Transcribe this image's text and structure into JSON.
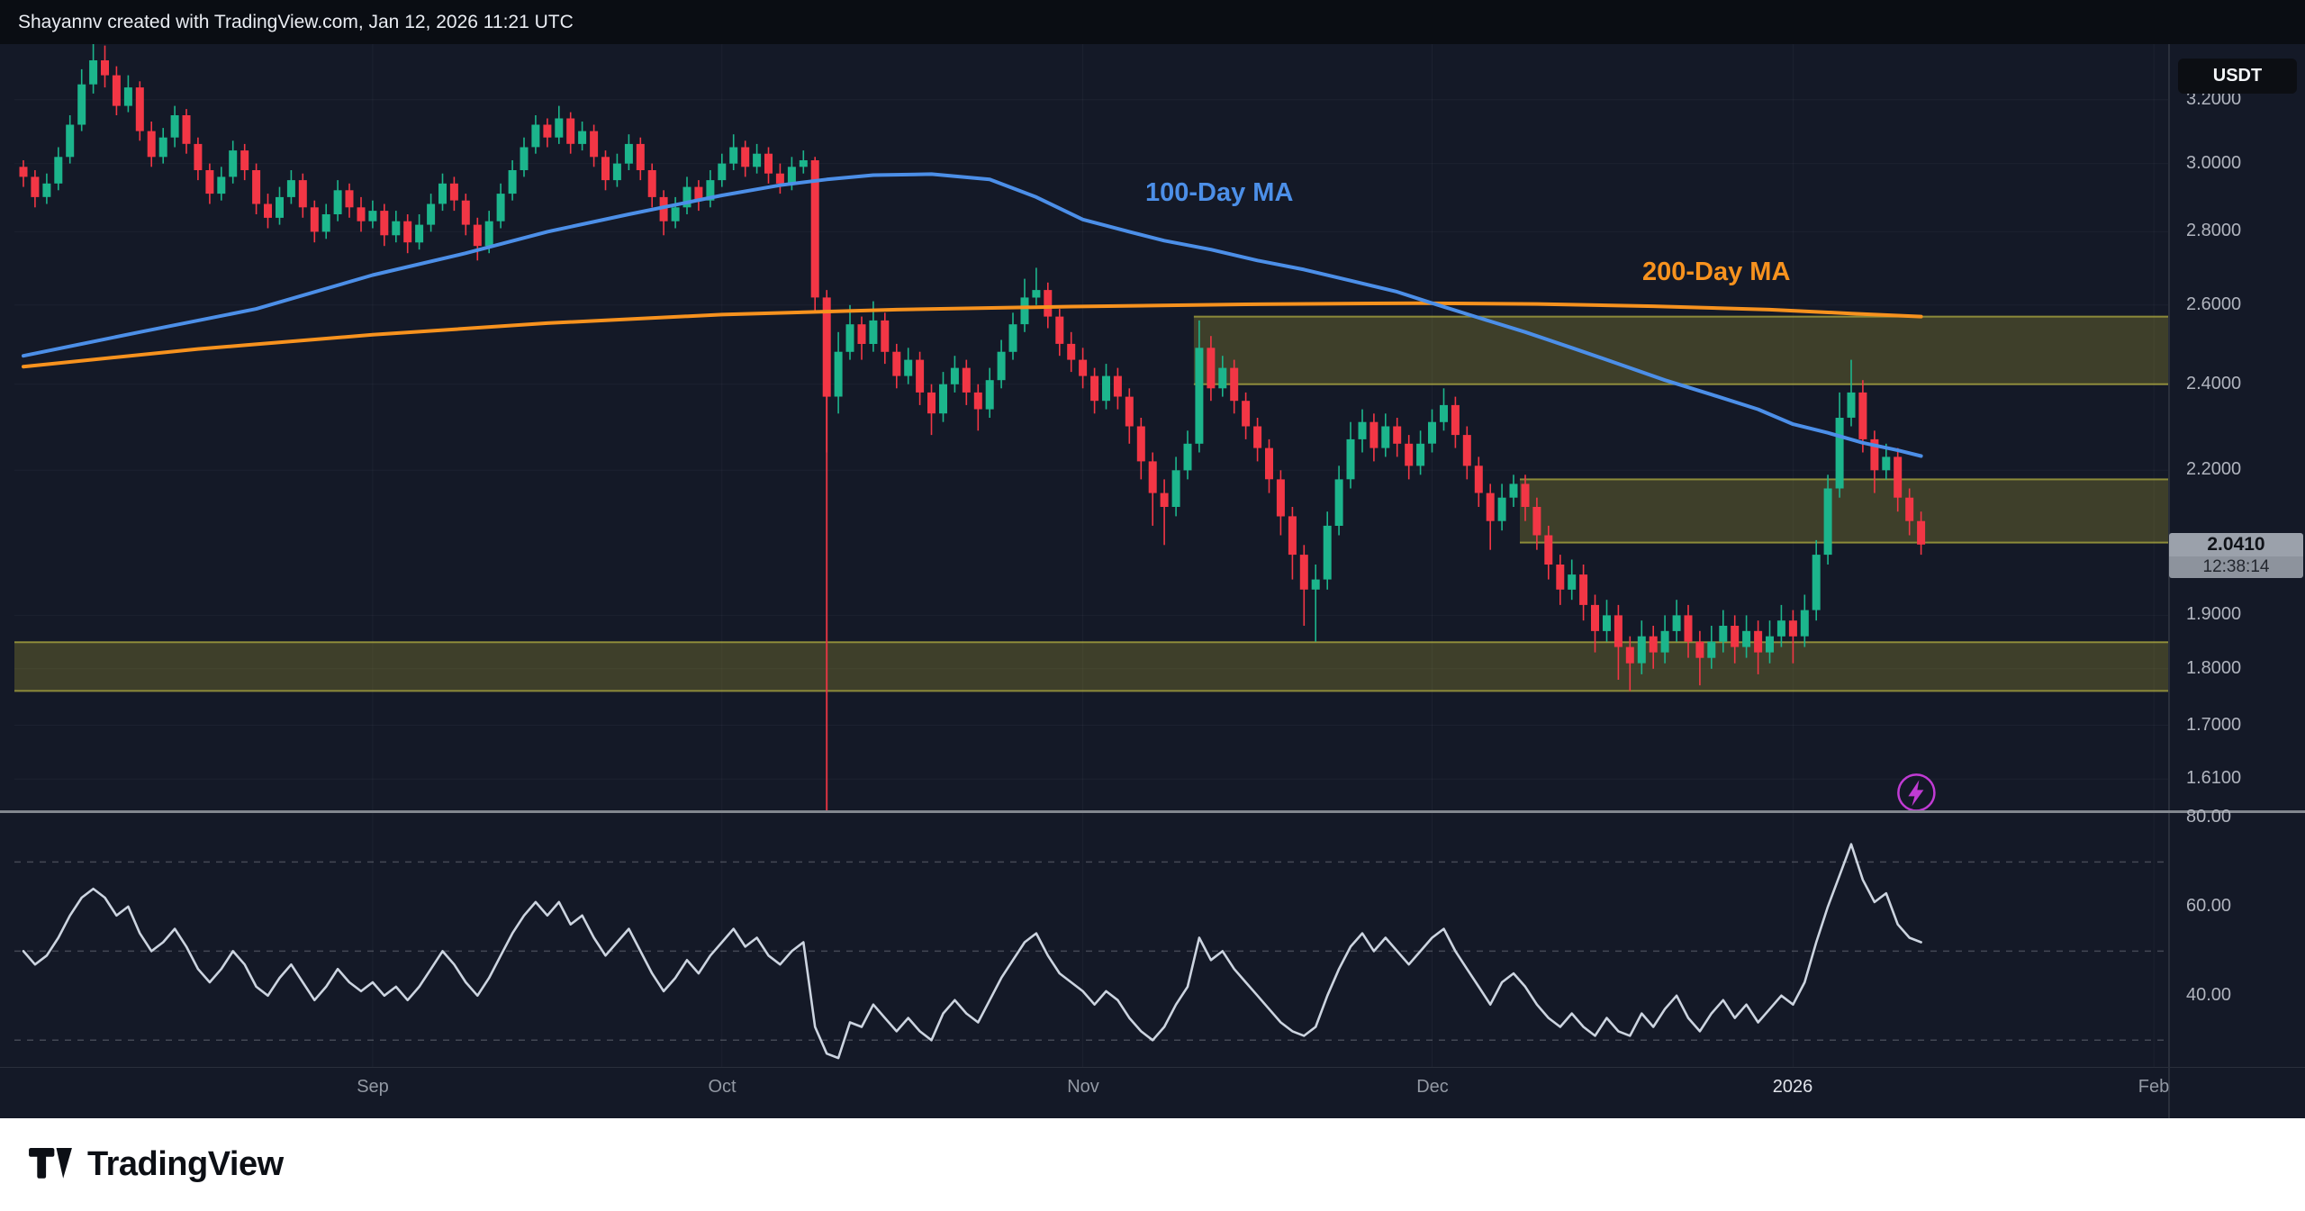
{
  "header": {
    "attribution": "Shayannv created with TradingView.com, Jan 12, 2026 11:21 UTC"
  },
  "symbol": {
    "quote_currency": "USDT"
  },
  "footer": {
    "brand": "TradingView"
  },
  "colors": {
    "background": "#141927",
    "topbar_background": "#0a0d13",
    "up": "#1cb58c",
    "down": "#f23645",
    "ma100": "#4c8fe8",
    "ma200": "#f7921e",
    "zone_fill": "rgba(148,144,48,0.33)",
    "zone_border": "rgba(206,202,70,0.6)",
    "axis_text": "#b0b4be",
    "grid": "rgba(197,203,212,0.05)",
    "separator": "#82878f",
    "axis_border": "#2a2f3b",
    "rsi_line": "#ccd4e0",
    "rsi_guide": "rgba(178,181,190,0.30)",
    "event_line": "#f23645",
    "badge_background": "#9ba1ab",
    "badge_text": "#0f1218",
    "lightning": "#c13bd4",
    "footer_background": "#ffffff",
    "footer_text": "#0c0f15"
  },
  "chart_data": {
    "type": "candlestick",
    "panes": [
      "price",
      "rsi"
    ],
    "x_axis": {
      "labels": [
        {
          "text": "Sep",
          "index": 30
        },
        {
          "text": "Oct",
          "index": 60
        },
        {
          "text": "Nov",
          "index": 91
        },
        {
          "text": "Dec",
          "index": 121
        },
        {
          "text": "2026",
          "index": 152,
          "emphasis": true
        },
        {
          "text": "Feb",
          "index": 183
        }
      ]
    },
    "price_axis": {
      "scale": "log",
      "min": 1.5585,
      "max": 3.385,
      "ticks": [
        {
          "value": 3.2,
          "label": "3.2000"
        },
        {
          "value": 3.0,
          "label": "3.0000"
        },
        {
          "value": 2.8,
          "label": "2.8000"
        },
        {
          "value": 2.6,
          "label": "2.6000"
        },
        {
          "value": 2.4,
          "label": "2.4000"
        },
        {
          "value": 2.2,
          "label": "2.2000"
        },
        {
          "value": 1.9,
          "label": "1.9000"
        },
        {
          "value": 1.8,
          "label": "1.8000"
        },
        {
          "value": 1.7,
          "label": "1.7000"
        },
        {
          "value": 1.61,
          "label": "1.6100"
        }
      ],
      "current_price": 2.041,
      "current_price_label": "2.0410",
      "countdown": "12:38:14"
    },
    "candles": [
      [
        2.99,
        3.01,
        2.93,
        2.96
      ],
      [
        2.96,
        2.98,
        2.87,
        2.9
      ],
      [
        2.9,
        2.97,
        2.88,
        2.94
      ],
      [
        2.94,
        3.05,
        2.92,
        3.02
      ],
      [
        3.02,
        3.15,
        3.0,
        3.12
      ],
      [
        3.12,
        3.3,
        3.1,
        3.25
      ],
      [
        3.25,
        3.39,
        3.22,
        3.33
      ],
      [
        3.33,
        3.38,
        3.24,
        3.28
      ],
      [
        3.28,
        3.31,
        3.15,
        3.18
      ],
      [
        3.18,
        3.28,
        3.16,
        3.24
      ],
      [
        3.24,
        3.26,
        3.07,
        3.1
      ],
      [
        3.1,
        3.13,
        2.99,
        3.02
      ],
      [
        3.02,
        3.11,
        3.0,
        3.08
      ],
      [
        3.08,
        3.18,
        3.05,
        3.15
      ],
      [
        3.15,
        3.17,
        3.03,
        3.06
      ],
      [
        3.06,
        3.08,
        2.95,
        2.98
      ],
      [
        2.98,
        3.0,
        2.88,
        2.91
      ],
      [
        2.91,
        2.99,
        2.89,
        2.96
      ],
      [
        2.96,
        3.07,
        2.94,
        3.04
      ],
      [
        3.04,
        3.06,
        2.95,
        2.98
      ],
      [
        2.98,
        3.0,
        2.85,
        2.88
      ],
      [
        2.88,
        2.91,
        2.81,
        2.84
      ],
      [
        2.84,
        2.93,
        2.82,
        2.9
      ],
      [
        2.9,
        2.98,
        2.88,
        2.95
      ],
      [
        2.95,
        2.97,
        2.84,
        2.87
      ],
      [
        2.87,
        2.89,
        2.77,
        2.8
      ],
      [
        2.8,
        2.88,
        2.78,
        2.85
      ],
      [
        2.85,
        2.95,
        2.83,
        2.92
      ],
      [
        2.92,
        2.94,
        2.84,
        2.87
      ],
      [
        2.87,
        2.9,
        2.8,
        2.83
      ],
      [
        2.83,
        2.89,
        2.81,
        2.86
      ],
      [
        2.86,
        2.88,
        2.76,
        2.79
      ],
      [
        2.79,
        2.86,
        2.77,
        2.83
      ],
      [
        2.83,
        2.85,
        2.74,
        2.77
      ],
      [
        2.77,
        2.85,
        2.75,
        2.82
      ],
      [
        2.82,
        2.91,
        2.8,
        2.88
      ],
      [
        2.88,
        2.97,
        2.86,
        2.94
      ],
      [
        2.94,
        2.96,
        2.86,
        2.89
      ],
      [
        2.89,
        2.91,
        2.79,
        2.82
      ],
      [
        2.82,
        2.84,
        2.72,
        2.76
      ],
      [
        2.76,
        2.86,
        2.74,
        2.83
      ],
      [
        2.83,
        2.94,
        2.81,
        2.91
      ],
      [
        2.91,
        3.01,
        2.89,
        2.98
      ],
      [
        2.98,
        3.08,
        2.96,
        3.05
      ],
      [
        3.05,
        3.15,
        3.03,
        3.12
      ],
      [
        3.12,
        3.14,
        3.05,
        3.08
      ],
      [
        3.08,
        3.18,
        3.06,
        3.14
      ],
      [
        3.14,
        3.16,
        3.03,
        3.06
      ],
      [
        3.06,
        3.13,
        3.04,
        3.1
      ],
      [
        3.1,
        3.12,
        2.99,
        3.02
      ],
      [
        3.02,
        3.04,
        2.92,
        2.95
      ],
      [
        2.95,
        3.03,
        2.93,
        3.0
      ],
      [
        3.0,
        3.09,
        2.98,
        3.06
      ],
      [
        3.06,
        3.08,
        2.95,
        2.98
      ],
      [
        2.98,
        3.0,
        2.87,
        2.9
      ],
      [
        2.9,
        2.92,
        2.79,
        2.83
      ],
      [
        2.83,
        2.9,
        2.81,
        2.87
      ],
      [
        2.87,
        2.96,
        2.85,
        2.93
      ],
      [
        2.93,
        2.95,
        2.86,
        2.89
      ],
      [
        2.89,
        2.98,
        2.87,
        2.95
      ],
      [
        2.95,
        3.03,
        2.93,
        3.0
      ],
      [
        3.0,
        3.09,
        2.98,
        3.05
      ],
      [
        3.05,
        3.07,
        2.96,
        2.99
      ],
      [
        2.99,
        3.06,
        2.97,
        3.03
      ],
      [
        3.03,
        3.05,
        2.94,
        2.97
      ],
      [
        2.97,
        3.0,
        2.91,
        2.94
      ],
      [
        2.94,
        3.02,
        2.92,
        2.99
      ],
      [
        2.99,
        3.04,
        2.97,
        3.01
      ],
      [
        3.01,
        3.02,
        2.58,
        2.62
      ],
      [
        2.62,
        2.64,
        2.24,
        2.37
      ],
      [
        2.37,
        2.53,
        2.33,
        2.48
      ],
      [
        2.48,
        2.6,
        2.46,
        2.55
      ],
      [
        2.55,
        2.57,
        2.46,
        2.5
      ],
      [
        2.5,
        2.61,
        2.48,
        2.56
      ],
      [
        2.56,
        2.58,
        2.45,
        2.48
      ],
      [
        2.48,
        2.5,
        2.39,
        2.42
      ],
      [
        2.42,
        2.49,
        2.4,
        2.46
      ],
      [
        2.46,
        2.48,
        2.35,
        2.38
      ],
      [
        2.38,
        2.4,
        2.28,
        2.33
      ],
      [
        2.33,
        2.43,
        2.31,
        2.4
      ],
      [
        2.4,
        2.47,
        2.38,
        2.44
      ],
      [
        2.44,
        2.46,
        2.35,
        2.38
      ],
      [
        2.38,
        2.4,
        2.29,
        2.34
      ],
      [
        2.34,
        2.44,
        2.32,
        2.41
      ],
      [
        2.41,
        2.51,
        2.39,
        2.48
      ],
      [
        2.48,
        2.58,
        2.46,
        2.55
      ],
      [
        2.55,
        2.67,
        2.53,
        2.62
      ],
      [
        2.62,
        2.7,
        2.6,
        2.64
      ],
      [
        2.64,
        2.66,
        2.54,
        2.57
      ],
      [
        2.57,
        2.59,
        2.47,
        2.5
      ],
      [
        2.5,
        2.53,
        2.43,
        2.46
      ],
      [
        2.46,
        2.49,
        2.39,
        2.42
      ],
      [
        2.42,
        2.44,
        2.33,
        2.36
      ],
      [
        2.36,
        2.45,
        2.34,
        2.42
      ],
      [
        2.42,
        2.44,
        2.34,
        2.37
      ],
      [
        2.37,
        2.39,
        2.26,
        2.3
      ],
      [
        2.3,
        2.32,
        2.18,
        2.22
      ],
      [
        2.22,
        2.24,
        2.08,
        2.15
      ],
      [
        2.15,
        2.18,
        2.04,
        2.12
      ],
      [
        2.12,
        2.23,
        2.1,
        2.2
      ],
      [
        2.2,
        2.29,
        2.18,
        2.26
      ],
      [
        2.26,
        2.56,
        2.24,
        2.49
      ],
      [
        2.49,
        2.52,
        2.36,
        2.39
      ],
      [
        2.39,
        2.47,
        2.37,
        2.44
      ],
      [
        2.44,
        2.46,
        2.33,
        2.36
      ],
      [
        2.36,
        2.38,
        2.27,
        2.3
      ],
      [
        2.3,
        2.32,
        2.22,
        2.25
      ],
      [
        2.25,
        2.27,
        2.15,
        2.18
      ],
      [
        2.18,
        2.2,
        2.06,
        2.1
      ],
      [
        2.1,
        2.12,
        1.97,
        2.02
      ],
      [
        2.02,
        2.04,
        1.88,
        1.95
      ],
      [
        1.95,
        2.0,
        1.85,
        1.97
      ],
      [
        1.97,
        2.11,
        1.95,
        2.08
      ],
      [
        2.08,
        2.21,
        2.06,
        2.18
      ],
      [
        2.18,
        2.31,
        2.16,
        2.27
      ],
      [
        2.27,
        2.34,
        2.24,
        2.31
      ],
      [
        2.31,
        2.33,
        2.22,
        2.25
      ],
      [
        2.25,
        2.33,
        2.23,
        2.3
      ],
      [
        2.3,
        2.32,
        2.23,
        2.26
      ],
      [
        2.26,
        2.28,
        2.18,
        2.21
      ],
      [
        2.21,
        2.29,
        2.19,
        2.26
      ],
      [
        2.26,
        2.34,
        2.24,
        2.31
      ],
      [
        2.31,
        2.39,
        2.29,
        2.35
      ],
      [
        2.35,
        2.37,
        2.25,
        2.28
      ],
      [
        2.28,
        2.3,
        2.18,
        2.21
      ],
      [
        2.21,
        2.23,
        2.12,
        2.15
      ],
      [
        2.15,
        2.17,
        2.03,
        2.09
      ],
      [
        2.09,
        2.17,
        2.07,
        2.14
      ],
      [
        2.14,
        2.19,
        2.12,
        2.17
      ],
      [
        2.17,
        2.19,
        2.09,
        2.12
      ],
      [
        2.12,
        2.14,
        2.03,
        2.06
      ],
      [
        2.06,
        2.08,
        1.97,
        2.0
      ],
      [
        2.0,
        2.02,
        1.92,
        1.95
      ],
      [
        1.95,
        2.01,
        1.93,
        1.98
      ],
      [
        1.98,
        2.0,
        1.89,
        1.92
      ],
      [
        1.92,
        1.94,
        1.83,
        1.87
      ],
      [
        1.87,
        1.93,
        1.85,
        1.9
      ],
      [
        1.9,
        1.92,
        1.78,
        1.84
      ],
      [
        1.84,
        1.86,
        1.76,
        1.81
      ],
      [
        1.81,
        1.89,
        1.79,
        1.86
      ],
      [
        1.86,
        1.88,
        1.8,
        1.83
      ],
      [
        1.83,
        1.9,
        1.81,
        1.87
      ],
      [
        1.87,
        1.93,
        1.85,
        1.9
      ],
      [
        1.9,
        1.92,
        1.82,
        1.85
      ],
      [
        1.85,
        1.87,
        1.77,
        1.82
      ],
      [
        1.82,
        1.88,
        1.8,
        1.85
      ],
      [
        1.85,
        1.91,
        1.83,
        1.88
      ],
      [
        1.88,
        1.9,
        1.81,
        1.84
      ],
      [
        1.84,
        1.9,
        1.82,
        1.87
      ],
      [
        1.87,
        1.89,
        1.79,
        1.83
      ],
      [
        1.83,
        1.89,
        1.81,
        1.86
      ],
      [
        1.86,
        1.92,
        1.84,
        1.89
      ],
      [
        1.89,
        1.91,
        1.81,
        1.86
      ],
      [
        1.86,
        1.94,
        1.84,
        1.91
      ],
      [
        1.91,
        2.05,
        1.89,
        2.02
      ],
      [
        2.02,
        2.19,
        2.0,
        2.16
      ],
      [
        2.16,
        2.38,
        2.14,
        2.32
      ],
      [
        2.32,
        2.46,
        2.3,
        2.38
      ],
      [
        2.38,
        2.41,
        2.24,
        2.27
      ],
      [
        2.27,
        2.29,
        2.15,
        2.2
      ],
      [
        2.2,
        2.26,
        2.18,
        2.23
      ],
      [
        2.23,
        2.25,
        2.11,
        2.14
      ],
      [
        2.14,
        2.16,
        2.06,
        2.09
      ],
      [
        2.09,
        2.11,
        2.02,
        2.041
      ]
    ],
    "ma100": {
      "label": "100-Day MA",
      "points": [
        [
          0,
          2.47
        ],
        [
          10,
          2.53
        ],
        [
          20,
          2.59
        ],
        [
          30,
          2.68
        ],
        [
          38,
          2.74
        ],
        [
          45,
          2.8
        ],
        [
          52,
          2.85
        ],
        [
          60,
          2.905
        ],
        [
          65,
          2.935
        ],
        [
          69,
          2.952
        ],
        [
          73,
          2.965
        ],
        [
          78,
          2.968
        ],
        [
          83,
          2.952
        ],
        [
          87,
          2.9
        ],
        [
          91,
          2.835
        ],
        [
          95,
          2.8
        ],
        [
          98,
          2.775
        ],
        [
          102,
          2.75
        ],
        [
          106,
          2.72
        ],
        [
          110,
          2.695
        ],
        [
          114,
          2.665
        ],
        [
          118,
          2.635
        ],
        [
          121,
          2.605
        ],
        [
          125,
          2.567
        ],
        [
          129,
          2.53
        ],
        [
          133,
          2.49
        ],
        [
          137,
          2.45
        ],
        [
          141,
          2.41
        ],
        [
          145,
          2.375
        ],
        [
          149,
          2.34
        ],
        [
          152,
          2.305
        ],
        [
          155,
          2.285
        ],
        [
          158,
          2.262
        ],
        [
          161,
          2.245
        ],
        [
          163,
          2.232
        ]
      ]
    },
    "ma200": {
      "label": "200-Day MA",
      "points": [
        [
          0,
          2.443
        ],
        [
          15,
          2.487
        ],
        [
          30,
          2.523
        ],
        [
          45,
          2.553
        ],
        [
          60,
          2.575
        ],
        [
          75,
          2.588
        ],
        [
          90,
          2.596
        ],
        [
          105,
          2.602
        ],
        [
          120,
          2.605
        ],
        [
          130,
          2.603
        ],
        [
          140,
          2.597
        ],
        [
          150,
          2.588
        ],
        [
          157,
          2.578
        ],
        [
          163,
          2.57
        ]
      ]
    },
    "zones": [
      {
        "name": "resistance-zone-upper",
        "start_index": 101,
        "top": 2.57,
        "bottom": 2.4
      },
      {
        "name": "resistance-zone-mid",
        "start_index": 129,
        "top": 2.18,
        "bottom": 2.045
      },
      {
        "name": "support-zone-lower",
        "start_index": 0,
        "top": 1.849,
        "bottom": 1.76
      }
    ],
    "event_line": {
      "index": 69,
      "from_price": 2.62
    },
    "marker": {
      "index": 162.6,
      "price": 1.588,
      "icon": "lightning"
    },
    "rsi": {
      "values": [
        50,
        47,
        49,
        53,
        58,
        62,
        64,
        62,
        58,
        60,
        54,
        50,
        52,
        55,
        51,
        46,
        43,
        46,
        50,
        47,
        42,
        40,
        44,
        47,
        43,
        39,
        42,
        46,
        43,
        41,
        43,
        40,
        42,
        39,
        42,
        46,
        50,
        47,
        43,
        40,
        44,
        49,
        54,
        58,
        61,
        58,
        61,
        56,
        58,
        53,
        49,
        52,
        55,
        50,
        45,
        41,
        44,
        48,
        45,
        49,
        52,
        55,
        51,
        53,
        49,
        47,
        50,
        52,
        33,
        27,
        26,
        34,
        33,
        38,
        35,
        32,
        35,
        32,
        30,
        36,
        39,
        36,
        34,
        39,
        44,
        48,
        52,
        54,
        49,
        45,
        43,
        41,
        38,
        41,
        39,
        35,
        32,
        30,
        33,
        38,
        42,
        53,
        48,
        50,
        46,
        43,
        40,
        37,
        34,
        32,
        31,
        33,
        40,
        46,
        51,
        54,
        50,
        53,
        50,
        47,
        50,
        53,
        55,
        50,
        46,
        42,
        38,
        43,
        45,
        42,
        38,
        35,
        33,
        36,
        33,
        31,
        35,
        32,
        31,
        36,
        33,
        37,
        40,
        35,
        32,
        36,
        39,
        35,
        38,
        34,
        37,
        40,
        38,
        43,
        52,
        60,
        67,
        74,
        66,
        61,
        63,
        56,
        53,
        52
      ],
      "guides": [
        70,
        50,
        30
      ],
      "ticks": [
        {
          "value": 80,
          "label": "80.00"
        },
        {
          "value": 60,
          "label": "60.00"
        },
        {
          "value": 40,
          "label": "40.00"
        }
      ]
    }
  }
}
